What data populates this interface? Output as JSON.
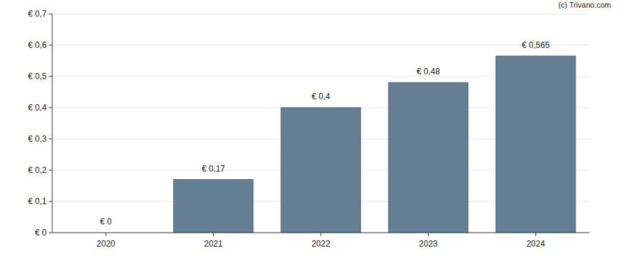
{
  "chart_data": {
    "type": "bar",
    "annotation": "(c) Trivano.com",
    "categories": [
      "2020",
      "2021",
      "2022",
      "2023",
      "2024"
    ],
    "values": [
      0,
      0.17,
      0.4,
      0.48,
      0.565
    ],
    "value_labels": [
      "€ 0",
      "€ 0,17",
      "€ 0,4",
      "€ 0,48",
      "€ 0,565"
    ],
    "data_labels": true,
    "color": "#647f93",
    "ylim": [
      0,
      0.7
    ],
    "yticks": [
      {
        "value": 0,
        "label": "€ 0"
      },
      {
        "value": 0.1,
        "label": "€ 0,1"
      },
      {
        "value": 0.2,
        "label": "€ 0,2"
      },
      {
        "value": 0.3,
        "label": "€ 0,3"
      },
      {
        "value": 0.4,
        "label": "€ 0,4"
      },
      {
        "value": 0.5,
        "label": "€ 0,5"
      },
      {
        "value": 0.6,
        "label": "€ 0,6"
      },
      {
        "value": 0.7,
        "label": "€ 0,7"
      }
    ],
    "grid": true
  }
}
